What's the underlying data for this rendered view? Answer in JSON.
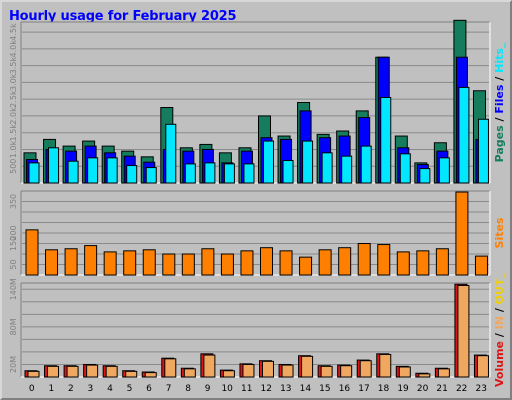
{
  "title": "Hourly usage for February 2025",
  "colors": {
    "pages": "#157d5e",
    "files": "#0000ff",
    "hits": "#00e7ff",
    "sites": "#ff8000",
    "volume": "#dd1515",
    "in": "#f0a860",
    "out": "#f0d000",
    "panel": "#c0c0c0",
    "grid": "#8a8a8a",
    "outline": "#000000"
  },
  "chart_data": [
    {
      "type": "bar",
      "panel": "pages-files-hits",
      "categories": [
        "0",
        "1",
        "2",
        "3",
        "4",
        "5",
        "6",
        "7",
        "8",
        "9",
        "10",
        "11",
        "12",
        "13",
        "14",
        "15",
        "16",
        "17",
        "18",
        "19",
        "20",
        "21",
        "22",
        "23"
      ],
      "ylim": [
        0,
        4800
      ],
      "yticks": [
        500,
        1000,
        1500,
        2000,
        2500,
        3000,
        3500,
        4000,
        4500
      ],
      "ytick_labels": [
        "500",
        "1.0k",
        "1.5k",
        "2.0k",
        "2.5k",
        "3.0k",
        "3.5k",
        "4.0k",
        "4.5k"
      ],
      "legend": [
        {
          "text": "Pages",
          "key": "pages"
        },
        {
          "text": " / ",
          "key": "outline"
        },
        {
          "text": "Files",
          "key": "files"
        },
        {
          "text": " / ",
          "key": "outline"
        },
        {
          "text": "Hits",
          "key": "hits"
        },
        {
          "text": "_",
          "key": "hits"
        }
      ],
      "series": [
        {
          "name": "Pages",
          "key": "pages",
          "values": [
            900,
            1300,
            1100,
            1250,
            1100,
            950,
            780,
            2250,
            1050,
            1150,
            900,
            1050,
            2000,
            1400,
            2400,
            1450,
            1550,
            2150,
            3750,
            1400,
            600,
            1200,
            4850,
            2750
          ]
        },
        {
          "name": "Files",
          "key": "files",
          "values": [
            700,
            1000,
            950,
            1100,
            900,
            800,
            620,
            1000,
            950,
            1000,
            600,
            950,
            1350,
            1300,
            2150,
            1350,
            1400,
            1950,
            3750,
            1050,
            550,
            950,
            3750,
            1300
          ]
        },
        {
          "name": "Hits",
          "key": "hits",
          "values": [
            600,
            1050,
            650,
            750,
            750,
            520,
            460,
            1750,
            570,
            600,
            570,
            570,
            1250,
            670,
            1250,
            900,
            800,
            1100,
            2550,
            870,
            430,
            750,
            2850,
            1900
          ]
        }
      ]
    },
    {
      "type": "bar",
      "panel": "sites",
      "categories": [
        "0",
        "1",
        "2",
        "3",
        "4",
        "5",
        "6",
        "7",
        "8",
        "9",
        "10",
        "11",
        "12",
        "13",
        "14",
        "15",
        "16",
        "17",
        "18",
        "19",
        "20",
        "21",
        "22",
        "23"
      ],
      "ylim": [
        0,
        400
      ],
      "yticks": [
        50,
        100,
        150,
        200,
        250,
        300,
        350
      ],
      "ytick_labels": [
        "50",
        "",
        "150",
        "200",
        "",
        "",
        "350"
      ],
      "legend": [
        {
          "text": "Sites",
          "key": "sites"
        }
      ],
      "series": [
        {
          "name": "Sites",
          "key": "sites",
          "values": [
            215,
            120,
            125,
            140,
            110,
            115,
            120,
            100,
            100,
            125,
            100,
            115,
            130,
            115,
            85,
            120,
            130,
            150,
            145,
            110,
            115,
            125,
            395,
            90
          ]
        }
      ]
    },
    {
      "type": "bar",
      "panel": "volume",
      "categories": [
        "0",
        "1",
        "2",
        "3",
        "4",
        "5",
        "6",
        "7",
        "8",
        "9",
        "10",
        "11",
        "12",
        "13",
        "14",
        "15",
        "16",
        "17",
        "18",
        "19",
        "20",
        "21",
        "22",
        "23"
      ],
      "ylim": [
        0,
        150
      ],
      "yticks": [
        20,
        40,
        60,
        80,
        100,
        120,
        140
      ],
      "ytick_labels": [
        "20M",
        "",
        "",
        "80M",
        "",
        "",
        "140M"
      ],
      "legend": [
        {
          "text": "Volume",
          "key": "volume"
        },
        {
          "text": " / ",
          "key": "outline"
        },
        {
          "text": "IN",
          "key": "in"
        },
        {
          "text": " / ",
          "key": "outline"
        },
        {
          "text": "OUT",
          "key": "out"
        },
        {
          "text": "_",
          "key": "out"
        }
      ],
      "series": [
        {
          "name": "Volume",
          "key": "volume",
          "values": [
            10,
            18,
            18,
            20,
            18,
            10,
            8,
            30,
            14,
            37,
            11,
            21,
            26,
            20,
            34,
            18,
            19,
            27,
            37,
            17,
            6,
            14,
            148,
            35
          ]
        },
        {
          "name": "IN",
          "key": "in",
          "values": [
            9,
            17,
            17,
            19,
            17,
            9,
            7,
            29,
            13,
            35,
            10,
            20,
            25,
            19,
            33,
            17,
            18,
            26,
            36,
            16,
            5,
            13,
            146,
            34
          ]
        }
      ]
    }
  ]
}
